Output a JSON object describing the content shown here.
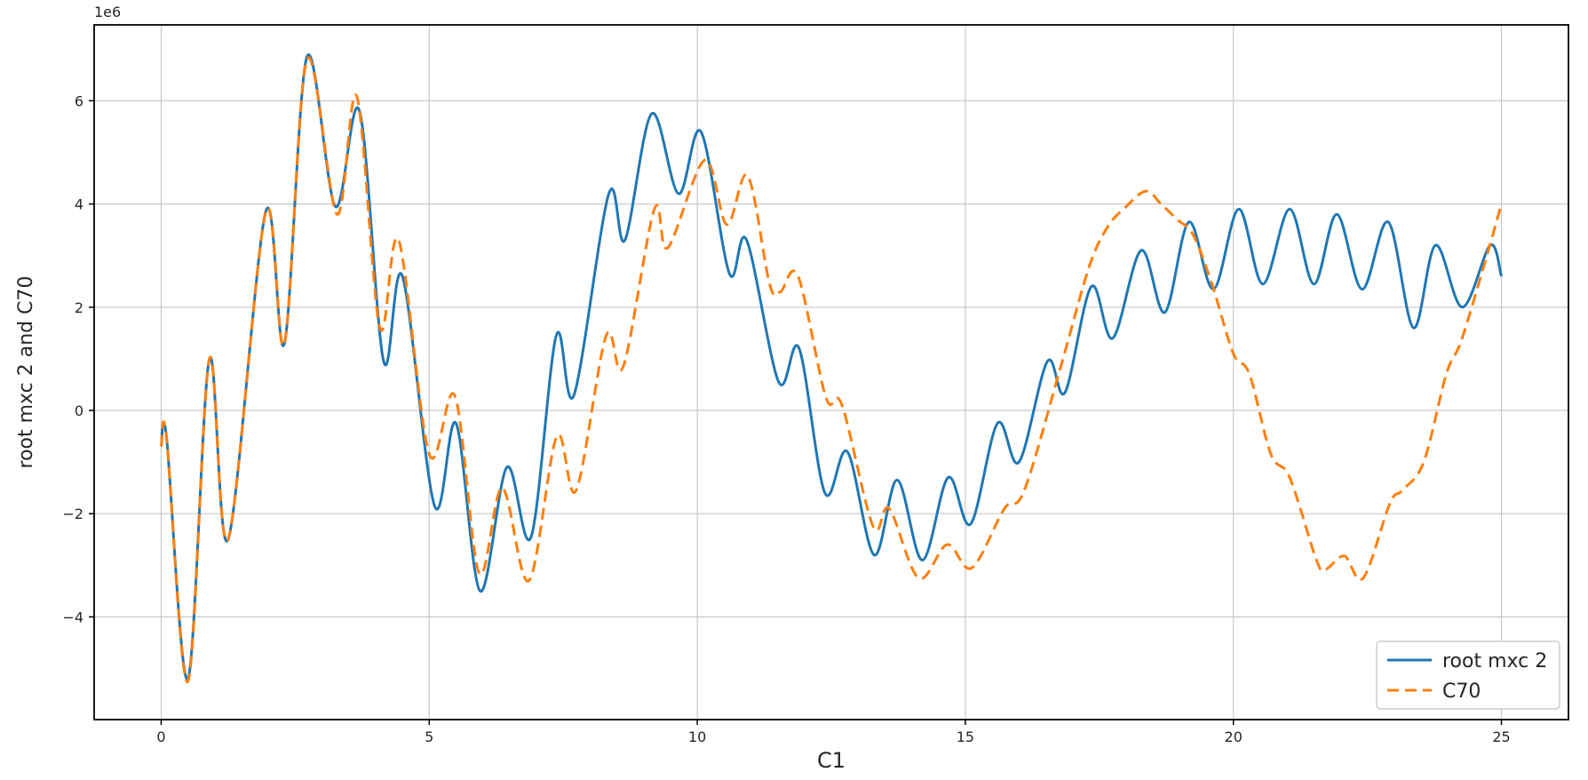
{
  "figure": {
    "background_color": "#ffffff",
    "plot_background_color": "#ffffff",
    "grid_color": "#c9c9c9",
    "spine_color": "#000000"
  },
  "chart_data": {
    "type": "line",
    "title": "",
    "xlabel": "C1",
    "ylabel": "root mxc 2 and C70",
    "y_offset_text": "1e6",
    "y_scale_factor": 1000000,
    "xlim": [
      -1.25,
      26.25
    ],
    "ylim": [
      -5.99,
      7.47
    ],
    "x_ticks": [
      0,
      5,
      10,
      15,
      20,
      25
    ],
    "x_tick_labels": [
      "0",
      "5",
      "10",
      "15",
      "20",
      "25"
    ],
    "y_ticks": [
      -4,
      -2,
      0,
      2,
      4,
      6
    ],
    "y_tick_labels": [
      "−4",
      "−2",
      "0",
      "2",
      "4",
      "6"
    ],
    "grid": true,
    "legend": {
      "position": "lower right",
      "entries": [
        {
          "label": "root mxc 2",
          "color": "#1f77b4",
          "style": "solid"
        },
        {
          "label": "C70",
          "color": "#ff7f0e",
          "style": "dashed"
        }
      ]
    },
    "series": [
      {
        "name": "root mxc 2",
        "color": "#1f77b4",
        "line_style": "solid",
        "y_units": "1e6",
        "points": [
          [
            0.0,
            -0.7
          ],
          [
            0.1,
            -0.52
          ],
          [
            0.5,
            -5.2
          ],
          [
            0.9,
            1.0
          ],
          [
            1.25,
            -2.5
          ],
          [
            1.95,
            3.85
          ],
          [
            2.3,
            1.3
          ],
          [
            2.72,
            6.85
          ],
          [
            3.25,
            3.95
          ],
          [
            3.7,
            5.8
          ],
          [
            4.15,
            0.95
          ],
          [
            4.5,
            2.6
          ],
          [
            5.1,
            -1.85
          ],
          [
            5.5,
            -0.25
          ],
          [
            5.95,
            -3.5
          ],
          [
            6.45,
            -1.1
          ],
          [
            6.9,
            -2.45
          ],
          [
            7.37,
            1.45
          ],
          [
            7.7,
            0.3
          ],
          [
            8.35,
            4.2
          ],
          [
            8.65,
            3.3
          ],
          [
            9.15,
            5.75
          ],
          [
            9.65,
            4.2
          ],
          [
            10.07,
            5.4
          ],
          [
            10.6,
            2.65
          ],
          [
            10.92,
            3.3
          ],
          [
            11.52,
            0.55
          ],
          [
            11.9,
            1.2
          ],
          [
            12.38,
            -1.6
          ],
          [
            12.8,
            -0.8
          ],
          [
            13.3,
            -2.8
          ],
          [
            13.73,
            -1.35
          ],
          [
            14.2,
            -2.9
          ],
          [
            14.68,
            -1.3
          ],
          [
            15.1,
            -2.2
          ],
          [
            15.6,
            -0.25
          ],
          [
            16.0,
            -1.0
          ],
          [
            16.53,
            0.95
          ],
          [
            16.86,
            0.35
          ],
          [
            17.35,
            2.4
          ],
          [
            17.75,
            1.4
          ],
          [
            18.28,
            3.1
          ],
          [
            18.72,
            1.9
          ],
          [
            19.17,
            3.65
          ],
          [
            19.63,
            2.35
          ],
          [
            20.1,
            3.9
          ],
          [
            20.55,
            2.45
          ],
          [
            21.05,
            3.9
          ],
          [
            21.5,
            2.45
          ],
          [
            21.93,
            3.8
          ],
          [
            22.4,
            2.35
          ],
          [
            22.89,
            3.65
          ],
          [
            23.36,
            1.6
          ],
          [
            23.77,
            3.2
          ],
          [
            24.27,
            2.0
          ],
          [
            24.79,
            3.2
          ],
          [
            25.0,
            2.6
          ]
        ]
      },
      {
        "name": "C70",
        "color": "#ff7f0e",
        "line_style": "dashed",
        "y_units": "1e6",
        "points": [
          [
            0.0,
            -0.7
          ],
          [
            0.1,
            -0.52
          ],
          [
            0.5,
            -5.25
          ],
          [
            0.9,
            1.0
          ],
          [
            1.25,
            -2.5
          ],
          [
            1.95,
            3.85
          ],
          [
            2.3,
            1.3
          ],
          [
            2.72,
            6.8
          ],
          [
            3.28,
            3.8
          ],
          [
            3.65,
            6.08
          ],
          [
            4.08,
            1.6
          ],
          [
            4.43,
            3.3
          ],
          [
            5.0,
            -0.85
          ],
          [
            5.48,
            0.28
          ],
          [
            5.93,
            -3.15
          ],
          [
            6.36,
            -1.5
          ],
          [
            6.86,
            -3.3
          ],
          [
            7.38,
            -0.5
          ],
          [
            7.74,
            -1.55
          ],
          [
            8.3,
            1.45
          ],
          [
            8.62,
            0.85
          ],
          [
            9.2,
            3.9
          ],
          [
            9.45,
            3.15
          ],
          [
            10.14,
            4.85
          ],
          [
            10.55,
            3.6
          ],
          [
            10.94,
            4.55
          ],
          [
            11.35,
            2.45
          ],
          [
            11.55,
            2.3
          ],
          [
            11.88,
            2.6
          ],
          [
            12.4,
            0.25
          ],
          [
            12.7,
            0.1
          ],
          [
            13.28,
            -2.25
          ],
          [
            13.58,
            -1.9
          ],
          [
            14.13,
            -3.25
          ],
          [
            14.66,
            -2.6
          ],
          [
            15.12,
            -3.05
          ],
          [
            15.73,
            -1.9
          ],
          [
            16.1,
            -1.55
          ],
          [
            16.78,
            0.85
          ],
          [
            17.3,
            2.75
          ],
          [
            17.65,
            3.55
          ],
          [
            18.0,
            3.95
          ],
          [
            18.37,
            4.25
          ],
          [
            18.65,
            4.0
          ],
          [
            18.95,
            3.7
          ],
          [
            19.25,
            3.4
          ],
          [
            19.6,
            2.45
          ],
          [
            20.0,
            1.1
          ],
          [
            20.3,
            0.7
          ],
          [
            20.7,
            -0.85
          ],
          [
            21.05,
            -1.3
          ],
          [
            21.55,
            -2.9
          ],
          [
            21.72,
            -3.08
          ],
          [
            22.07,
            -2.82
          ],
          [
            22.42,
            -3.25
          ],
          [
            22.92,
            -1.8
          ],
          [
            23.15,
            -1.55
          ],
          [
            23.55,
            -1.0
          ],
          [
            23.97,
            0.7
          ],
          [
            24.25,
            1.35
          ],
          [
            24.7,
            2.9
          ],
          [
            25.0,
            4.0
          ]
        ]
      }
    ]
  }
}
